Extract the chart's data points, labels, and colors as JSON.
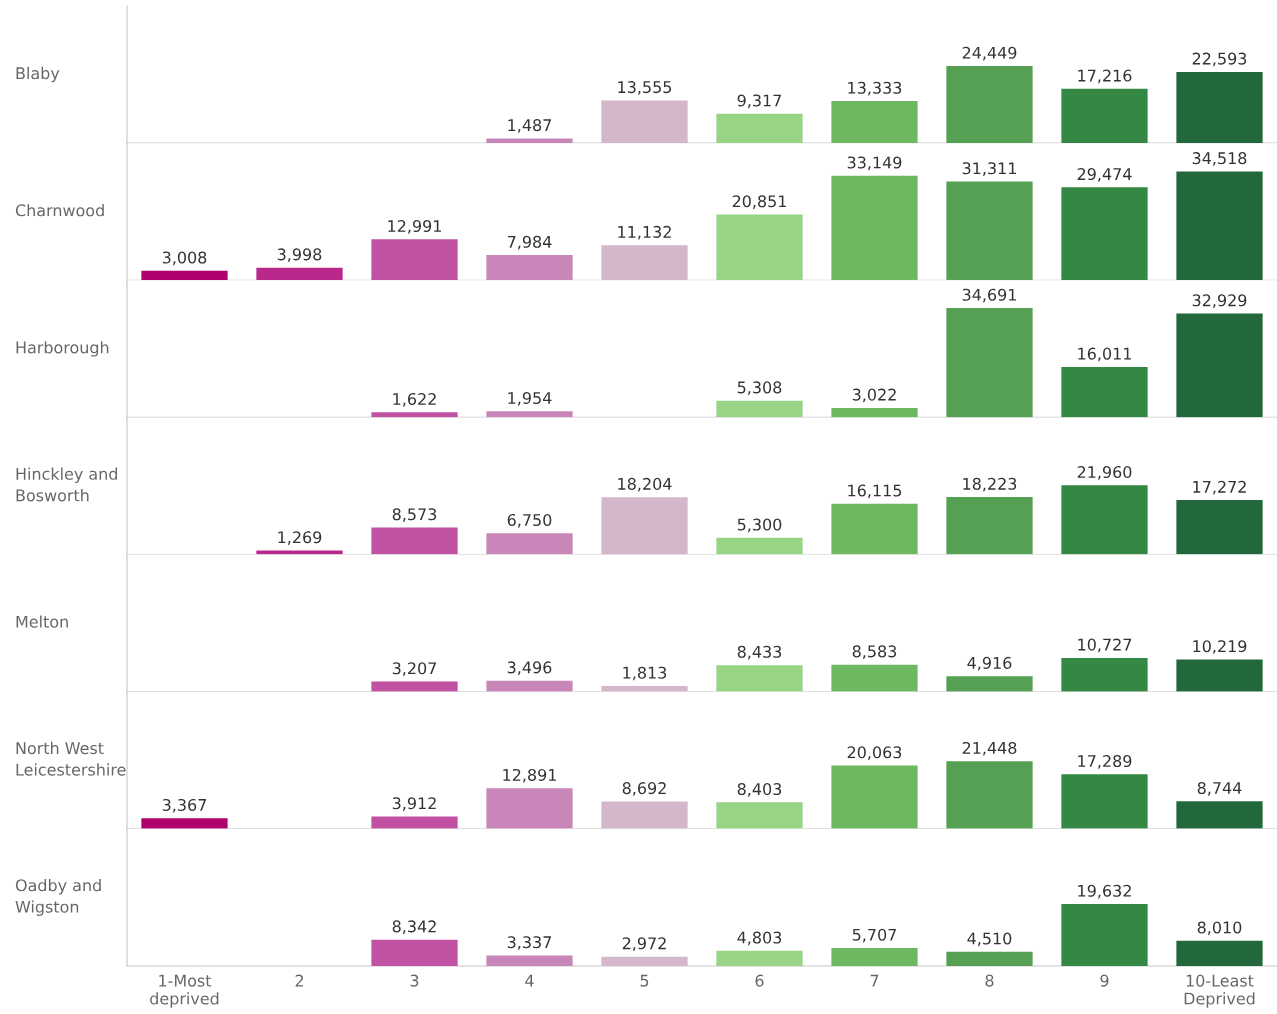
{
  "chart_data": [
    {
      "type": "bar",
      "ylabel": "Blaby",
      "categories": [
        null,
        null,
        null,
        null,
        null,
        null,
        null,
        null,
        null,
        null
      ],
      "values": [
        null,
        null,
        null,
        1487,
        13555,
        9317,
        13333,
        24449,
        17216,
        22593
      ],
      "value_labels": [
        null,
        null,
        null,
        "1,487",
        "13,555",
        "9,317",
        "13,333",
        "24,449",
        "17,216",
        "22,593"
      ],
      "colors": [
        "#b0006e",
        "#b8278a",
        "#c051a3",
        "#c986b8",
        "#d4b7ca",
        "#98d486",
        "#6fb862",
        "#55a052",
        "#358744",
        "#23683c"
      ]
    },
    {
      "type": "bar",
      "ylabel": "Charnwood",
      "categories": [
        null,
        null,
        null,
        null,
        null,
        null,
        null,
        null,
        null,
        null
      ],
      "values": [
        3008,
        3998,
        12991,
        7984,
        11132,
        20851,
        33149,
        31311,
        29474,
        34518
      ],
      "value_labels": [
        "3,008",
        "3,998",
        "12,991",
        "7,984",
        "11,132",
        "20,851",
        "33,149",
        "31,311",
        "29,474",
        "34,518"
      ],
      "colors": [
        "#b0006e",
        "#b8278a",
        "#c051a3",
        "#c986b8",
        "#d4b7ca",
        "#98d486",
        "#6fb862",
        "#55a052",
        "#358744",
        "#23683c"
      ]
    },
    {
      "type": "bar",
      "ylabel": "Harborough",
      "categories": [
        null,
        null,
        null,
        null,
        null,
        null,
        null,
        null,
        null,
        null
      ],
      "values": [
        null,
        null,
        1622,
        1954,
        null,
        5308,
        3022,
        34691,
        16011,
        32929
      ],
      "value_labels": [
        null,
        null,
        "1,622",
        "1,954",
        null,
        "5,308",
        "3,022",
        "34,691",
        "16,011",
        "32,929"
      ],
      "colors": [
        "#b0006e",
        "#b8278a",
        "#c051a3",
        "#c986b8",
        "#d4b7ca",
        "#98d486",
        "#6fb862",
        "#55a052",
        "#358744",
        "#23683c"
      ]
    },
    {
      "type": "bar",
      "ylabel": "Hinckley and\nBosworth",
      "categories": [
        null,
        null,
        null,
        null,
        null,
        null,
        null,
        null,
        null,
        null
      ],
      "values": [
        null,
        1269,
        8573,
        6750,
        18204,
        5300,
        16115,
        18223,
        21960,
        17272
      ],
      "value_labels": [
        null,
        "1,269",
        "8,573",
        "6,750",
        "18,204",
        "5,300",
        "16,115",
        "18,223",
        "21,960",
        "17,272"
      ],
      "colors": [
        "#b0006e",
        "#b8278a",
        "#c051a3",
        "#c986b8",
        "#d4b7ca",
        "#98d486",
        "#6fb862",
        "#55a052",
        "#358744",
        "#23683c"
      ]
    },
    {
      "type": "bar",
      "ylabel": "Melton",
      "categories": [
        null,
        null,
        null,
        null,
        null,
        null,
        null,
        null,
        null,
        null
      ],
      "values": [
        null,
        null,
        3207,
        3496,
        1813,
        8433,
        8583,
        4916,
        10727,
        10219
      ],
      "value_labels": [
        null,
        null,
        "3,207",
        "3,496",
        "1,813",
        "8,433",
        "8,583",
        "4,916",
        "10,727",
        "10,219"
      ],
      "colors": [
        "#b0006e",
        "#b8278a",
        "#c051a3",
        "#c986b8",
        "#d4b7ca",
        "#98d486",
        "#6fb862",
        "#55a052",
        "#358744",
        "#23683c"
      ]
    },
    {
      "type": "bar",
      "ylabel": "North West\nLeicestershire",
      "categories": [
        null,
        null,
        null,
        null,
        null,
        null,
        null,
        null,
        null,
        null
      ],
      "values": [
        3367,
        null,
        3912,
        12891,
        8692,
        8403,
        20063,
        21448,
        17289,
        8744
      ],
      "value_labels": [
        "3,367",
        null,
        "3,912",
        "12,891",
        "8,692",
        "8,403",
        "20,063",
        "21,448",
        "17,289",
        "8,744"
      ],
      "colors": [
        "#b0006e",
        "#b8278a",
        "#c051a3",
        "#c986b8",
        "#d4b7ca",
        "#98d486",
        "#6fb862",
        "#55a052",
        "#358744",
        "#23683c"
      ]
    },
    {
      "type": "bar",
      "ylabel": "Oadby and\nWigston",
      "categories": [
        "1-Most\ndeprived",
        "2",
        "3",
        "4",
        "5",
        "6",
        "7",
        "8",
        "9",
        "10-Least\nDeprived"
      ],
      "values": [
        null,
        null,
        8342,
        3337,
        2972,
        4803,
        5707,
        4510,
        19632,
        8010
      ],
      "value_labels": [
        null,
        null,
        "8,342",
        "3,337",
        "2,972",
        "4,803",
        "5,707",
        "4,510",
        "19,632",
        "8,010"
      ],
      "colors": [
        "#b0006e",
        "#b8278a",
        "#c051a3",
        "#c986b8",
        "#d4b7ca",
        "#98d486",
        "#6fb862",
        "#55a052",
        "#358744",
        "#23683c"
      ]
    }
  ]
}
